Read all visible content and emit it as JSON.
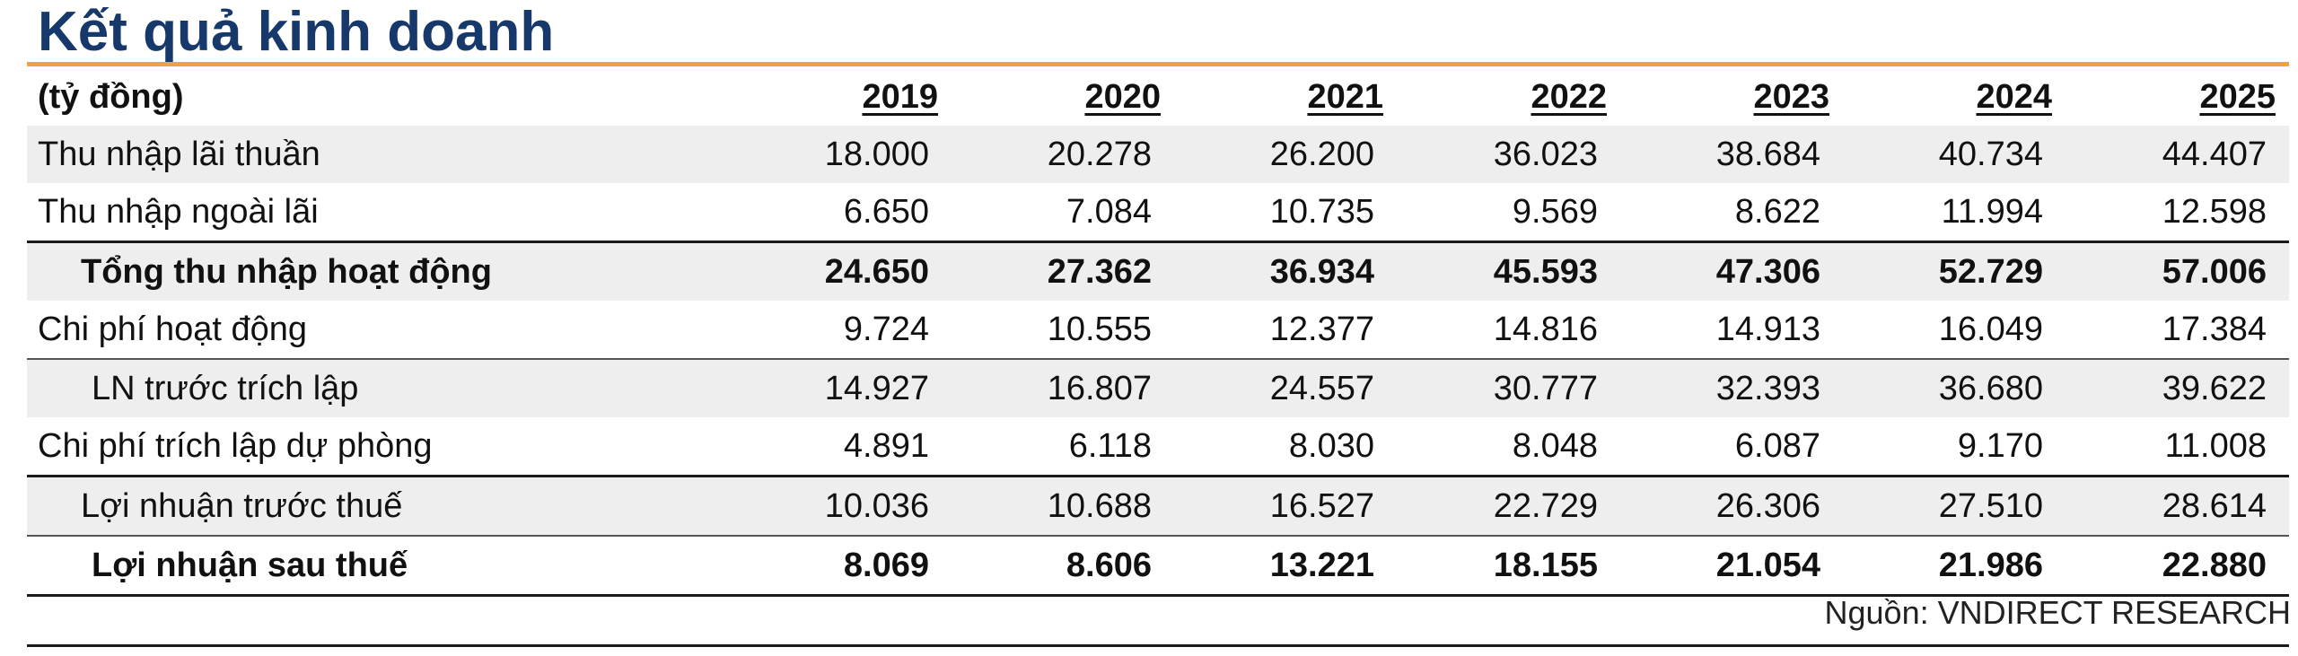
{
  "title": "Kết quả kinh doanh",
  "unit_label": "(tỷ đồng)",
  "years": [
    "2019",
    "2020",
    "2021",
    "2022",
    "2023",
    "2024",
    "2025"
  ],
  "rows": [
    {
      "label": "Thu nhập lãi thuần",
      "values": [
        "18.000",
        "20.278",
        "26.200",
        "36.023",
        "38.684",
        "40.734",
        "44.407"
      ]
    },
    {
      "label": "Thu nhập ngoài lãi",
      "values": [
        "6.650",
        "7.084",
        "10.735",
        "9.569",
        "8.622",
        "11.994",
        "12.598"
      ]
    },
    {
      "label": "Tổng thu nhập hoạt động",
      "values": [
        "24.650",
        "27.362",
        "36.934",
        "45.593",
        "47.306",
        "52.729",
        "57.006"
      ]
    },
    {
      "label": "Chi phí hoạt động",
      "values": [
        "9.724",
        "10.555",
        "12.377",
        "14.816",
        "14.913",
        "16.049",
        "17.384"
      ]
    },
    {
      "label": "LN trước trích lập",
      "values": [
        "14.927",
        "16.807",
        "24.557",
        "30.777",
        "32.393",
        "36.680",
        "39.622"
      ]
    },
    {
      "label": "Chi phí trích lập dự phòng",
      "values": [
        "4.891",
        "6.118",
        "8.030",
        "8.048",
        "6.087",
        "9.170",
        "11.008"
      ]
    },
    {
      "label": "Lợi nhuận trước thuế",
      "values": [
        "10.036",
        "10.688",
        "16.527",
        "22.729",
        "26.306",
        "27.510",
        "28.614"
      ]
    },
    {
      "label": "Lợi nhuận sau thuế",
      "values": [
        "8.069",
        "8.606",
        "13.221",
        "18.155",
        "21.054",
        "21.986",
        "22.880"
      ]
    }
  ],
  "source": "Nguồn: VNDIRECT RESEARCH",
  "colors": {
    "title": "#16386b",
    "accent_rule": "#f2a040",
    "row_shade": "#eeeeee"
  }
}
